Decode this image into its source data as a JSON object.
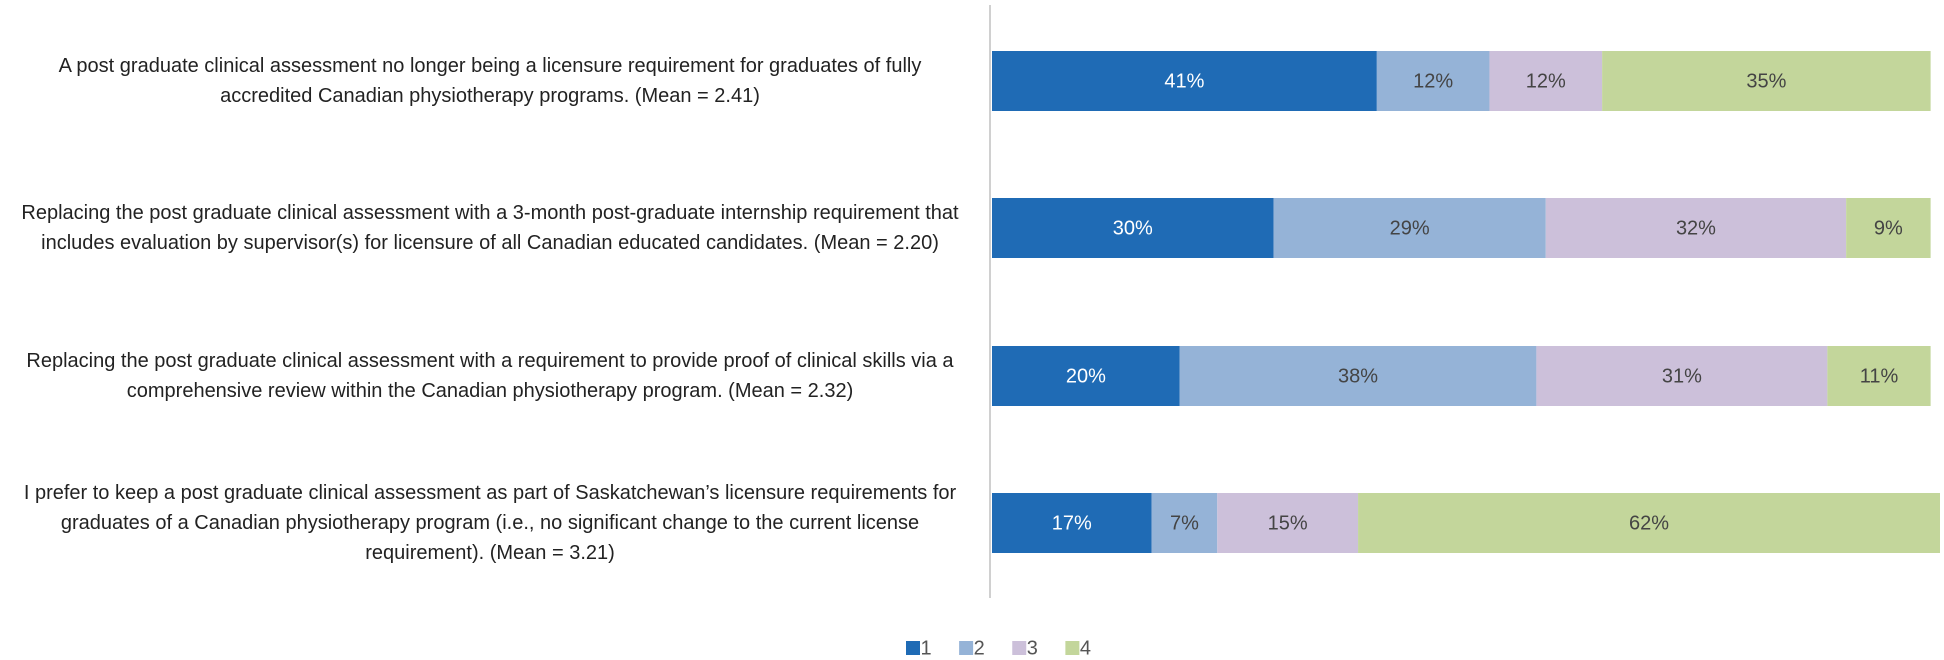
{
  "chart_data": {
    "type": "bar",
    "orientation": "horizontal",
    "stacked": true,
    "categories": [
      "A post graduate clinical assessment no longer being a licensure requirement for graduates of fully accredited Canadian physiotherapy programs. (Mean = 2.41)",
      "Replacing the post graduate clinical assessment with a 3-month post-graduate internship requirement that includes evaluation by supervisor(s) for licensure of all Canadian educated candidates. (Mean = 2.20)",
      "Replacing the post graduate clinical assessment with a requirement to provide proof of clinical skills via a comprehensive review within the Canadian physiotherapy program. (Mean = 2.32)",
      "I prefer to keep a post graduate clinical assessment as part of Saskatchewan’s licensure requirements for graduates of a Canadian physiotherapy program (i.e., no significant change to the current license requirement). (Mean = 3.21)"
    ],
    "series": [
      {
        "name": "1",
        "color": "#1f6bb5",
        "values": [
          41,
          30,
          20,
          17
        ],
        "value_labels": [
          "41%",
          "30%",
          "20%",
          "17%"
        ]
      },
      {
        "name": "2",
        "color": "#95b3d7",
        "values": [
          12,
          29,
          38,
          7
        ],
        "value_labels": [
          "12%",
          "29%",
          "38%",
          "7%"
        ]
      },
      {
        "name": "3",
        "color": "#ccc0da",
        "values": [
          12,
          32,
          31,
          15
        ],
        "value_labels": [
          "12%",
          "32%",
          "31%",
          "15%"
        ]
      },
      {
        "name": "4",
        "color": "#c3d69b",
        "values": [
          35,
          9,
          11,
          62
        ],
        "value_labels": [
          "35%",
          "9%",
          "11%",
          "62%"
        ]
      }
    ],
    "xlim": [
      0,
      101
    ],
    "legend": "bottom"
  }
}
